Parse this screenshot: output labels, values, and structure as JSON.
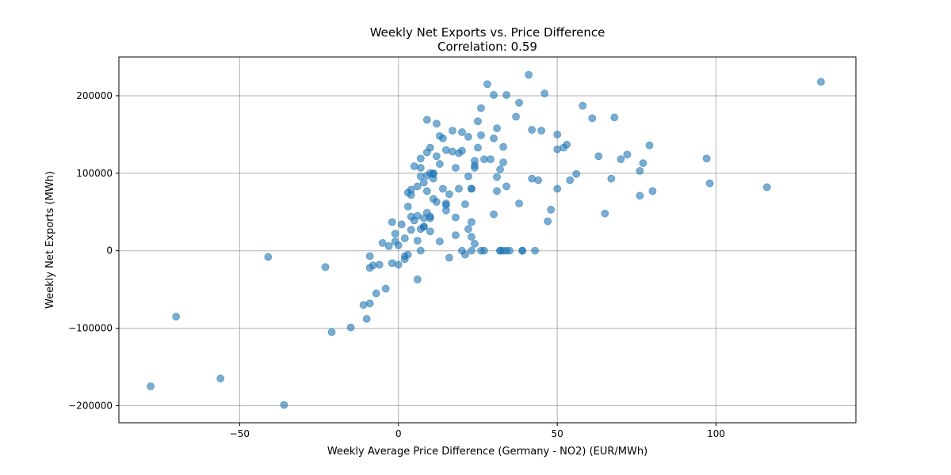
{
  "chart_data": {
    "type": "scatter",
    "title": "Weekly Net Exports vs. Price Difference",
    "subtitle": "Correlation: 0.59",
    "xlabel": "Weekly Average Price Difference (Germany - NO2) (EUR/MWh)",
    "ylabel": "Weekly Net Exports (MWh)",
    "xlim": [
      -88,
      144
    ],
    "ylim": [
      -222000,
      250000
    ],
    "xticks": [
      -50,
      0,
      50,
      100
    ],
    "xtick_labels": [
      "−50",
      "0",
      "50",
      "100"
    ],
    "yticks": [
      -200000,
      -100000,
      0,
      100000,
      200000
    ],
    "ytick_labels": [
      "−200000",
      "−100000",
      "0",
      "100000",
      "200000"
    ],
    "grid": true,
    "marker_color": "#1f77b4",
    "marker_alpha": 0.6,
    "points": [
      [
        -78,
        -175000
      ],
      [
        -70,
        -85000
      ],
      [
        -56,
        -165000
      ],
      [
        -41,
        -8000
      ],
      [
        -36,
        -199000
      ],
      [
        -23,
        -21000
      ],
      [
        -21,
        -105000
      ],
      [
        -15,
        -99000
      ],
      [
        -11,
        -70000
      ],
      [
        -10,
        -88000
      ],
      [
        -9,
        -7000
      ],
      [
        -9,
        -22000
      ],
      [
        -9,
        -68000
      ],
      [
        -8,
        -19000
      ],
      [
        -7,
        -55000
      ],
      [
        -6,
        -18000
      ],
      [
        -5,
        10000
      ],
      [
        -4,
        -49000
      ],
      [
        -3,
        6000
      ],
      [
        -2,
        -16000
      ],
      [
        -2,
        37000
      ],
      [
        -1,
        22000
      ],
      [
        -1,
        12000
      ],
      [
        0,
        -18000
      ],
      [
        0,
        7000
      ],
      [
        1,
        34000
      ],
      [
        2,
        -11000
      ],
      [
        2,
        -7000
      ],
      [
        3,
        -5000
      ],
      [
        2,
        16000
      ],
      [
        3,
        75000
      ],
      [
        3,
        57000
      ],
      [
        4,
        79000
      ],
      [
        4,
        72000
      ],
      [
        4,
        27000
      ],
      [
        4,
        44000
      ],
      [
        5,
        39000
      ],
      [
        5,
        109000
      ],
      [
        6,
        83000
      ],
      [
        6,
        45000
      ],
      [
        6,
        13000
      ],
      [
        6,
        -37000
      ],
      [
        7,
        119000
      ],
      [
        7,
        96000
      ],
      [
        7,
        107000
      ],
      [
        7,
        28000
      ],
      [
        7,
        0
      ],
      [
        8,
        88000
      ],
      [
        8,
        42000
      ],
      [
        8,
        31000
      ],
      [
        8,
        31000
      ],
      [
        9,
        49000
      ],
      [
        9,
        127000
      ],
      [
        9,
        97000
      ],
      [
        9,
        77000
      ],
      [
        9,
        169000
      ],
      [
        10,
        25000
      ],
      [
        10,
        100000
      ],
      [
        10,
        42000
      ],
      [
        10,
        44000
      ],
      [
        10,
        133000
      ],
      [
        11,
        67000
      ],
      [
        11,
        93000
      ],
      [
        11,
        100000
      ],
      [
        11,
        99000
      ],
      [
        12,
        63000
      ],
      [
        12,
        122000
      ],
      [
        12,
        164000
      ],
      [
        13,
        148000
      ],
      [
        13,
        112000
      ],
      [
        13,
        12000
      ],
      [
        14,
        145000
      ],
      [
        14,
        80000
      ],
      [
        15,
        61000
      ],
      [
        15,
        130000
      ],
      [
        15,
        59000
      ],
      [
        15,
        52000
      ],
      [
        16,
        73000
      ],
      [
        16,
        -9000
      ],
      [
        17,
        128000
      ],
      [
        17,
        155000
      ],
      [
        18,
        107000
      ],
      [
        18,
        43000
      ],
      [
        18,
        20000
      ],
      [
        19,
        80000
      ],
      [
        19,
        126000
      ],
      [
        20,
        129000
      ],
      [
        20,
        153000
      ],
      [
        20,
        0
      ],
      [
        21,
        60000
      ],
      [
        21,
        -5000
      ],
      [
        22,
        96000
      ],
      [
        22,
        147000
      ],
      [
        22,
        28000
      ],
      [
        23,
        80000
      ],
      [
        23,
        80000
      ],
      [
        23,
        18000
      ],
      [
        23,
        37000
      ],
      [
        23,
        0
      ],
      [
        24,
        110000
      ],
      [
        24,
        116000
      ],
      [
        24,
        107000
      ],
      [
        24,
        9000
      ],
      [
        25,
        133000
      ],
      [
        25,
        167000
      ],
      [
        26,
        184000
      ],
      [
        26,
        149000
      ],
      [
        26,
        0
      ],
      [
        27,
        0
      ],
      [
        27,
        118000
      ],
      [
        28,
        215000
      ],
      [
        29,
        118000
      ],
      [
        30,
        145000
      ],
      [
        30,
        47000
      ],
      [
        30,
        201000
      ],
      [
        31,
        158000
      ],
      [
        31,
        95000
      ],
      [
        31,
        77000
      ],
      [
        32,
        105000
      ],
      [
        32,
        0
      ],
      [
        32,
        0
      ],
      [
        33,
        134000
      ],
      [
        33,
        0
      ],
      [
        33,
        114000
      ],
      [
        34,
        201000
      ],
      [
        34,
        83000
      ],
      [
        34,
        0
      ],
      [
        35,
        0
      ],
      [
        37,
        173000
      ],
      [
        38,
        61000
      ],
      [
        38,
        191000
      ],
      [
        39,
        0
      ],
      [
        39,
        0
      ],
      [
        41,
        227000
      ],
      [
        42,
        93000
      ],
      [
        42,
        156000
      ],
      [
        43,
        0
      ],
      [
        44,
        91000
      ],
      [
        45,
        155000
      ],
      [
        46,
        203000
      ],
      [
        47,
        38000
      ],
      [
        48,
        53000
      ],
      [
        50,
        80000
      ],
      [
        50,
        150000
      ],
      [
        50,
        131000
      ],
      [
        52,
        133000
      ],
      [
        53,
        137000
      ],
      [
        54,
        91000
      ],
      [
        56,
        99000
      ],
      [
        58,
        187000
      ],
      [
        61,
        171000
      ],
      [
        63,
        122000
      ],
      [
        65,
        48000
      ],
      [
        67,
        93000
      ],
      [
        68,
        172000
      ],
      [
        70,
        118000
      ],
      [
        72,
        124000
      ],
      [
        76,
        71000
      ],
      [
        76,
        103000
      ],
      [
        77,
        113000
      ],
      [
        79,
        136000
      ],
      [
        80,
        77000
      ],
      [
        97,
        119000
      ],
      [
        98,
        87000
      ],
      [
        116,
        82000
      ],
      [
        133,
        218000
      ]
    ]
  }
}
